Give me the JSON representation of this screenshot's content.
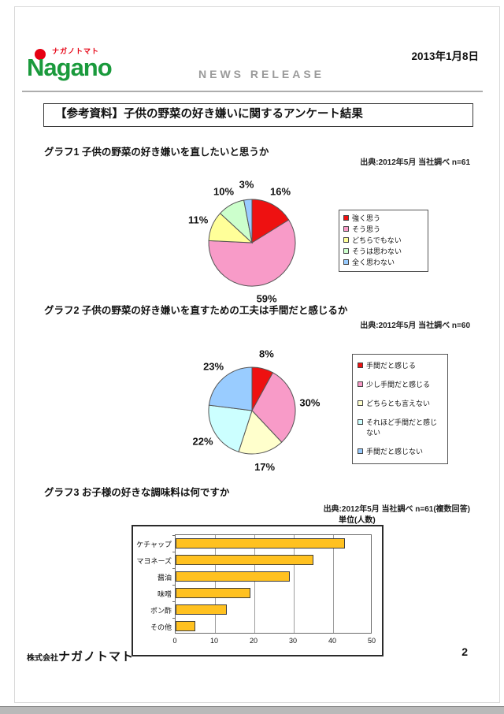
{
  "header": {
    "logo_brand": "Nagano",
    "logo_kana": "ナガノトマト",
    "news_release": "NEWS RELEASE",
    "date": "2013年1月8日"
  },
  "title": "【参考資料】子供の野菜の好き嫌いに関するアンケート結果",
  "footer": {
    "company_prefix": "株式会社",
    "company_name": "ナガノトマト",
    "page": "2"
  },
  "chart_data": [
    {
      "id": "graph1",
      "type": "pie",
      "title": "グラフ1 子供の野菜の好き嫌いを直したいと思うか",
      "source": "出典:2012年5月 当社調べ n=61",
      "labels": [
        "強く思う",
        "そう思う",
        "どちらでもない",
        "そうは思わない",
        "全く思わない"
      ],
      "values": [
        16,
        59,
        11,
        10,
        3
      ],
      "unit": "%",
      "colors": [
        "#ee1111",
        "#f89bc8",
        "#ffff99",
        "#ccffcc",
        "#99ccff"
      ],
      "legend_position": "right",
      "start_angle": "top",
      "direction": "clockwise"
    },
    {
      "id": "graph2",
      "type": "pie",
      "title": "グラフ2 子供の野菜の好き嫌いを直すための工夫は手間だと感じるか",
      "source": "出典:2012年5月 当社調べ n=60",
      "labels": [
        "手間だと感じる",
        "少し手間だと感じる",
        "どちらとも言えない",
        "それほど手間だと感じない",
        "手間だと感じない"
      ],
      "values": [
        8,
        30,
        17,
        22,
        23
      ],
      "unit": "%",
      "colors": [
        "#ee1111",
        "#f89bc8",
        "#ffffcc",
        "#ccffff",
        "#99ccff"
      ],
      "legend_position": "right",
      "start_angle": "top",
      "direction": "clockwise"
    },
    {
      "id": "graph3",
      "type": "bar",
      "orientation": "horizontal",
      "title": "グラフ3 お子様の好きな調味料は何ですか",
      "source": "出典:2012年5月 当社調べ n=61(複数回答)",
      "unit_label": "単位(人数)",
      "categories": [
        "ケチャップ",
        "マヨネーズ",
        "醤油",
        "味噌",
        "ポン酢",
        "その他"
      ],
      "values": [
        43,
        35,
        29,
        19,
        13,
        5
      ],
      "xlim": [
        0,
        50
      ],
      "xticks": [
        0,
        10,
        20,
        30,
        40,
        50
      ],
      "bar_color": "#ffc120",
      "grid": true
    }
  ]
}
